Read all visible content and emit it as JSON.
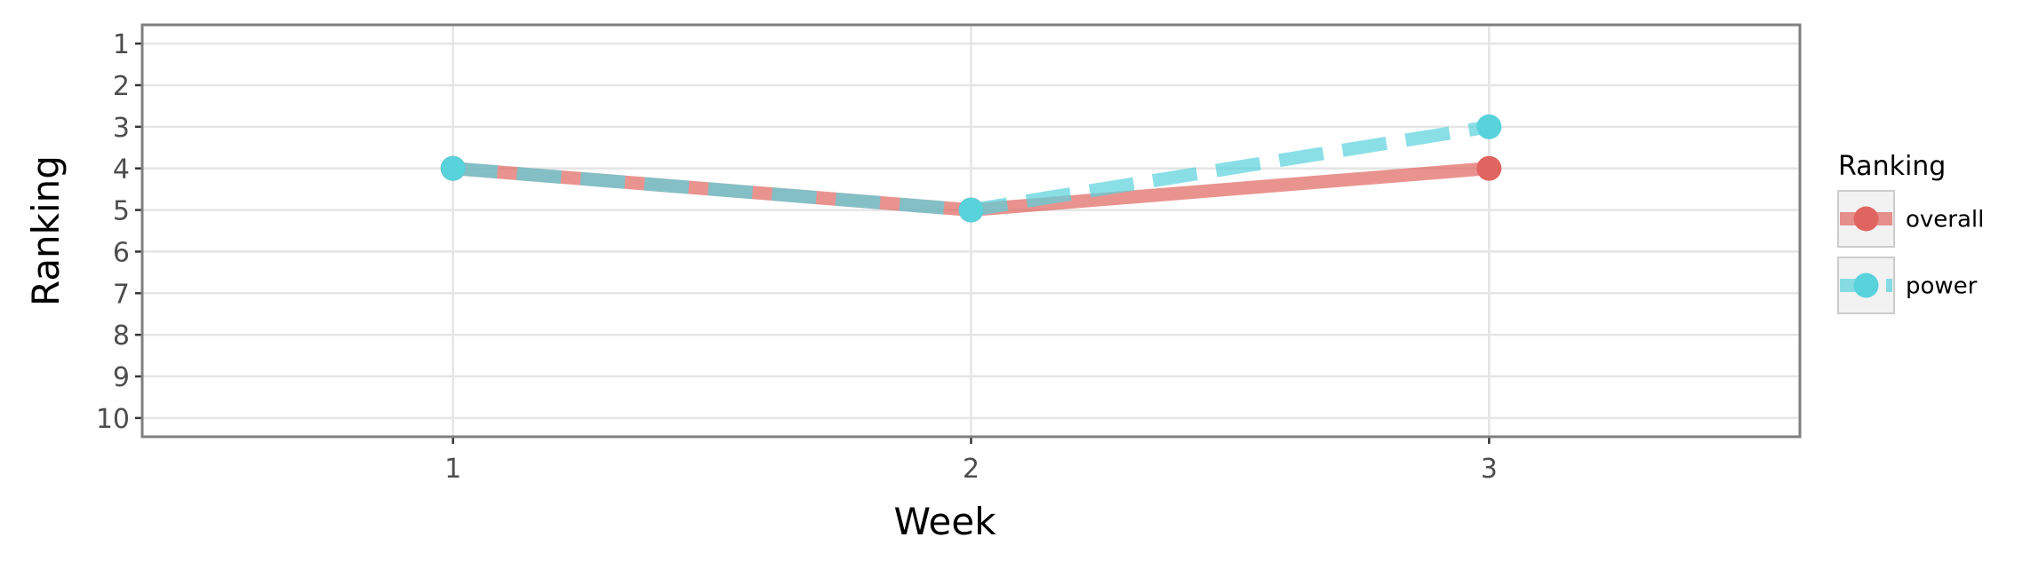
{
  "chart_data": {
    "type": "line",
    "xlabel": "Week",
    "ylabel": "Ranking",
    "x": [
      1,
      2,
      3
    ],
    "xlim": [
      0.4,
      3.6
    ],
    "ylim": [
      10.45,
      0.55
    ],
    "y_reversed": true,
    "x_ticks": [
      "1",
      "2",
      "3"
    ],
    "y_ticks": [
      "1",
      "2",
      "3",
      "4",
      "5",
      "6",
      "7",
      "8",
      "9",
      "10"
    ],
    "grid": true,
    "legend": {
      "title": "Ranking",
      "position": "right"
    },
    "series": [
      {
        "name": "overall",
        "values": [
          4,
          5,
          4
        ],
        "color": "#E06560",
        "line_style": "solid"
      },
      {
        "name": "power",
        "values": [
          4,
          5,
          3
        ],
        "color": "#58D2DB",
        "line_style": "dashed"
      }
    ]
  }
}
